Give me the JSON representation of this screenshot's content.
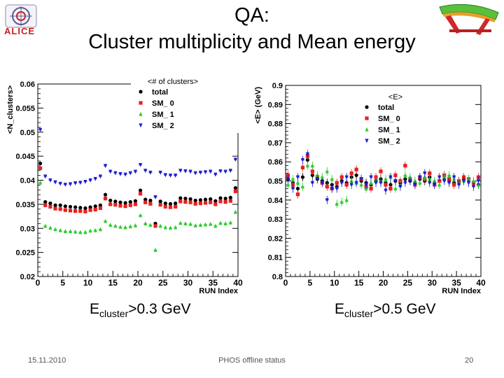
{
  "slide": {
    "title_line1": "QA:",
    "title_line2": "Cluster multiplicity and Mean energy",
    "logo_text": "ALICE",
    "footer_date": "15.11.2010",
    "footer_center": "PHOS offline status",
    "footer_page": "20"
  },
  "captions": {
    "left_main": "E",
    "left_sub": "cluster",
    "left_rest": ">0.3 GeV",
    "right_main": "E",
    "right_sub": "cluster",
    "right_rest": ">0.5 GeV"
  },
  "colors": {
    "total": "#000000",
    "sm0": "#e8201e",
    "sm1": "#2ecc2e",
    "sm2": "#1c1cd0"
  },
  "chart_data": [
    {
      "type": "scatter",
      "title": "<# of clusters>",
      "xlabel": "RUN Index",
      "ylabel": "<N_clusters>",
      "xlim": [
        0,
        40
      ],
      "ylim": [
        0.02,
        0.06
      ],
      "xticks": [
        "0",
        "5",
        "10",
        "15",
        "20",
        "25",
        "30",
        "35",
        "40"
      ],
      "yticks": [
        "0.02",
        "0.025",
        "0.03",
        "0.035",
        "0.04",
        "0.045",
        "0.05",
        "0.055",
        "0.06"
      ],
      "legend_title": "<# of clusters>",
      "legend_position": "top-right",
      "series": [
        {
          "name": "total",
          "marker": "circle",
          "color_key": "total",
          "x": [
            0,
            1,
            2,
            3,
            4,
            5,
            6,
            7,
            8,
            9,
            10,
            11,
            12,
            13,
            14,
            15,
            16,
            17,
            18,
            19,
            20,
            21,
            22,
            23,
            24,
            25,
            26,
            27,
            28,
            29,
            30,
            31,
            32,
            33,
            34,
            35,
            36,
            37,
            38,
            39
          ],
          "y": [
            0.0435,
            0.0355,
            0.0352,
            0.0348,
            0.0348,
            0.0346,
            0.0345,
            0.0344,
            0.0343,
            0.0342,
            0.0344,
            0.0346,
            0.0348,
            0.037,
            0.0358,
            0.0356,
            0.0354,
            0.0353,
            0.0355,
            0.0357,
            0.0379,
            0.036,
            0.0358,
            0.031,
            0.0356,
            0.0352,
            0.0351,
            0.0352,
            0.0363,
            0.0362,
            0.0361,
            0.0358,
            0.0359,
            0.036,
            0.0361,
            0.0357,
            0.0363,
            0.0362,
            0.0364,
            0.0384
          ]
        },
        {
          "name": "SM_0",
          "marker": "square",
          "color_key": "sm0",
          "x": [
            0,
            1,
            2,
            3,
            4,
            5,
            6,
            7,
            8,
            9,
            10,
            11,
            12,
            13,
            14,
            15,
            16,
            17,
            18,
            19,
            20,
            21,
            22,
            23,
            24,
            25,
            26,
            27,
            28,
            29,
            30,
            31,
            32,
            33,
            34,
            35,
            36,
            37,
            38,
            39
          ],
          "y": [
            0.0425,
            0.0348,
            0.0345,
            0.0341,
            0.034,
            0.0338,
            0.0337,
            0.0336,
            0.0336,
            0.0335,
            0.0338,
            0.0339,
            0.0342,
            0.0362,
            0.035,
            0.0349,
            0.0347,
            0.0346,
            0.0348,
            0.035,
            0.0372,
            0.0354,
            0.0351,
            0.0305,
            0.0349,
            0.0345,
            0.0344,
            0.0345,
            0.0356,
            0.0355,
            0.0354,
            0.0351,
            0.0352,
            0.0353,
            0.0354,
            0.035,
            0.0356,
            0.0355,
            0.0357,
            0.0377
          ]
        },
        {
          "name": "SM_1",
          "marker": "triangle",
          "color_key": "sm1",
          "x": [
            0,
            1,
            2,
            3,
            4,
            5,
            6,
            7,
            8,
            9,
            10,
            11,
            12,
            13,
            14,
            15,
            16,
            17,
            18,
            19,
            20,
            21,
            22,
            23,
            24,
            25,
            26,
            27,
            28,
            29,
            30,
            31,
            32,
            33,
            34,
            35,
            36,
            37,
            38,
            39
          ],
          "y": [
            0.0395,
            0.0305,
            0.0301,
            0.0298,
            0.0296,
            0.0294,
            0.0294,
            0.0293,
            0.0292,
            0.0292,
            0.0295,
            0.0296,
            0.0298,
            0.0315,
            0.0307,
            0.0305,
            0.0303,
            0.0302,
            0.0304,
            0.0306,
            0.0327,
            0.031,
            0.0307,
            0.0255,
            0.0305,
            0.0302,
            0.0301,
            0.0302,
            0.0311,
            0.031,
            0.0309,
            0.0306,
            0.0307,
            0.0308,
            0.0309,
            0.0305,
            0.0311,
            0.031,
            0.0312,
            0.0334
          ]
        },
        {
          "name": "SM_2",
          "marker": "triangle-down",
          "color_key": "sm2",
          "x": [
            0,
            1,
            2,
            3,
            4,
            5,
            6,
            7,
            8,
            9,
            10,
            11,
            12,
            13,
            14,
            15,
            16,
            17,
            18,
            19,
            20,
            21,
            22,
            23,
            24,
            25,
            26,
            27,
            28,
            29,
            30,
            31,
            32,
            33,
            34,
            35,
            36,
            37,
            38,
            39
          ],
          "y": [
            0.0505,
            0.0408,
            0.04,
            0.0396,
            0.0393,
            0.0391,
            0.0392,
            0.0394,
            0.0395,
            0.0397,
            0.04,
            0.0403,
            0.0408,
            0.043,
            0.0418,
            0.0415,
            0.0413,
            0.0412,
            0.0415,
            0.0418,
            0.0432,
            0.042,
            0.0416,
            0.0365,
            0.0416,
            0.0411,
            0.041,
            0.041,
            0.042,
            0.0419,
            0.0418,
            0.0415,
            0.0416,
            0.0417,
            0.0418,
            0.0412,
            0.0419,
            0.0418,
            0.042,
            0.0443
          ]
        }
      ]
    },
    {
      "type": "scatter",
      "title": "<E>",
      "xlabel": "RUN Index",
      "ylabel": "<E> (GeV)",
      "xlim": [
        0,
        40
      ],
      "ylim": [
        0.8,
        0.9
      ],
      "xticks": [
        "0",
        "5",
        "10",
        "15",
        "20",
        "25",
        "30",
        "35",
        "40"
      ],
      "yticks": [
        "0.8",
        "0.81",
        "0.82",
        "0.83",
        "0.84",
        "0.85",
        "0.86",
        "0.87",
        "0.88",
        "0.89",
        "0.9"
      ],
      "legend_title": "<E>",
      "legend_position": "top-right",
      "series": [
        {
          "name": "total",
          "marker": "circle",
          "color_key": "total",
          "x": [
            0,
            1,
            2,
            3,
            4,
            5,
            6,
            7,
            8,
            9,
            10,
            11,
            12,
            13,
            14,
            15,
            16,
            17,
            18,
            19,
            20,
            21,
            22,
            23,
            24,
            25,
            26,
            27,
            28,
            29,
            30,
            31,
            32,
            33,
            34,
            35,
            36,
            37,
            38,
            39
          ],
          "y": [
            0.851,
            0.849,
            0.846,
            0.852,
            0.861,
            0.853,
            0.851,
            0.85,
            0.849,
            0.848,
            0.847,
            0.85,
            0.849,
            0.852,
            0.853,
            0.85,
            0.849,
            0.848,
            0.85,
            0.851,
            0.849,
            0.848,
            0.85,
            0.849,
            0.851,
            0.85,
            0.849,
            0.851,
            0.85,
            0.852,
            0.849,
            0.85,
            0.851,
            0.85,
            0.849,
            0.85,
            0.851,
            0.85,
            0.849,
            0.848
          ]
        },
        {
          "name": "SM_0",
          "marker": "square",
          "color_key": "sm0",
          "x": [
            0,
            1,
            2,
            3,
            4,
            5,
            6,
            7,
            8,
            9,
            10,
            11,
            12,
            13,
            14,
            15,
            16,
            17,
            18,
            19,
            20,
            21,
            22,
            23,
            24,
            25,
            26,
            27,
            28,
            29,
            30,
            31,
            32,
            33,
            34,
            35,
            36,
            37,
            38,
            39
          ],
          "y": [
            0.853,
            0.848,
            0.843,
            0.857,
            0.863,
            0.855,
            0.852,
            0.849,
            0.847,
            0.846,
            0.849,
            0.852,
            0.848,
            0.854,
            0.856,
            0.851,
            0.847,
            0.846,
            0.852,
            0.855,
            0.848,
            0.846,
            0.853,
            0.85,
            0.858,
            0.851,
            0.848,
            0.852,
            0.851,
            0.854,
            0.848,
            0.85,
            0.853,
            0.851,
            0.848,
            0.85,
            0.852,
            0.851,
            0.849,
            0.852
          ]
        },
        {
          "name": "SM_1",
          "marker": "triangle",
          "color_key": "sm1",
          "x": [
            0,
            1,
            2,
            3,
            4,
            5,
            6,
            7,
            8,
            9,
            10,
            11,
            12,
            13,
            14,
            15,
            16,
            17,
            18,
            19,
            20,
            21,
            22,
            23,
            24,
            25,
            26,
            27,
            28,
            29,
            30,
            31,
            32,
            33,
            34,
            35,
            36,
            37,
            38,
            39
          ],
          "y": [
            0.848,
            0.851,
            0.849,
            0.847,
            0.858,
            0.858,
            0.853,
            0.852,
            0.855,
            0.851,
            0.838,
            0.839,
            0.84,
            0.85,
            0.849,
            0.848,
            0.846,
            0.849,
            0.85,
            0.85,
            0.851,
            0.852,
            0.846,
            0.848,
            0.853,
            0.852,
            0.85,
            0.849,
            0.852,
            0.851,
            0.85,
            0.848,
            0.852,
            0.853,
            0.851,
            0.849,
            0.85,
            0.851,
            0.85,
            0.848
          ]
        },
        {
          "name": "SM_2",
          "marker": "triangle-down",
          "color_key": "sm2",
          "x": [
            0,
            1,
            2,
            3,
            4,
            5,
            6,
            7,
            8,
            9,
            10,
            11,
            12,
            13,
            14,
            15,
            16,
            17,
            18,
            19,
            20,
            21,
            22,
            23,
            24,
            25,
            26,
            27,
            28,
            29,
            30,
            31,
            32,
            33,
            34,
            35,
            36,
            37,
            38,
            39
          ],
          "y": [
            0.851,
            0.846,
            0.852,
            0.861,
            0.864,
            0.849,
            0.851,
            0.849,
            0.84,
            0.846,
            0.846,
            0.849,
            0.852,
            0.848,
            0.849,
            0.851,
            0.848,
            0.852,
            0.849,
            0.849,
            0.845,
            0.852,
            0.85,
            0.847,
            0.849,
            0.85,
            0.848,
            0.852,
            0.854,
            0.849,
            0.848,
            0.852,
            0.85,
            0.849,
            0.852,
            0.848,
            0.85,
            0.849,
            0.847,
            0.85
          ]
        }
      ]
    }
  ]
}
